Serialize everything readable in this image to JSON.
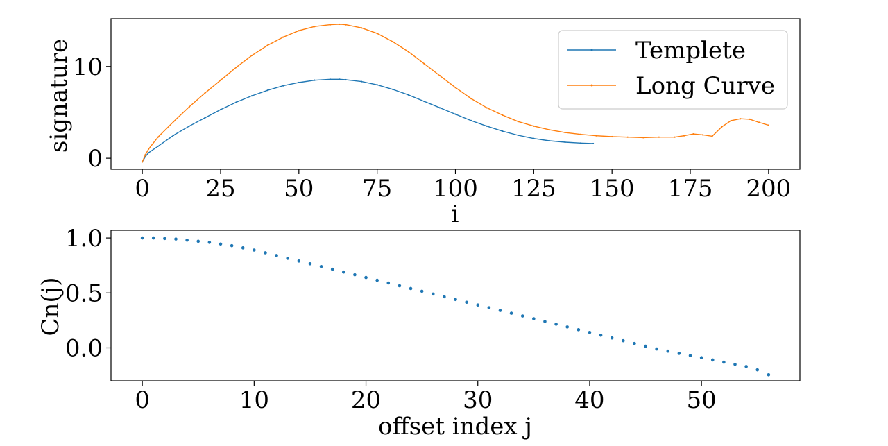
{
  "chart_data": [
    {
      "type": "line",
      "title": "",
      "xlabel": "i",
      "ylabel": "signature",
      "xlim": [
        -10,
        210
      ],
      "ylim": [
        -1.2,
        15.2
      ],
      "xticks": [
        0,
        25,
        50,
        75,
        100,
        125,
        150,
        175,
        200
      ],
      "yticks": [
        0,
        10
      ],
      "legend": {
        "placement": "top-right"
      },
      "series": [
        {
          "name": "Templete",
          "color": "#1f77b4",
          "marker": "dot-small",
          "x": [
            0,
            1,
            2,
            5,
            10,
            15,
            20,
            25,
            30,
            35,
            40,
            45,
            50,
            55,
            60,
            63,
            65,
            70,
            75,
            80,
            85,
            90,
            95,
            100,
            105,
            110,
            115,
            120,
            125,
            130,
            135,
            140,
            144
          ],
          "values": [
            -0.4,
            0.2,
            0.6,
            1.3,
            2.5,
            3.5,
            4.4,
            5.3,
            6.1,
            6.8,
            7.4,
            7.9,
            8.25,
            8.5,
            8.6,
            8.6,
            8.55,
            8.35,
            8.0,
            7.5,
            6.9,
            6.2,
            5.5,
            4.8,
            4.1,
            3.5,
            2.95,
            2.5,
            2.15,
            1.9,
            1.75,
            1.65,
            1.6
          ]
        },
        {
          "name": "Long Curve",
          "color": "#ff7f0e",
          "marker": "dot-small",
          "x": [
            0,
            1,
            2,
            5,
            10,
            15,
            20,
            25,
            30,
            35,
            40,
            45,
            50,
            55,
            60,
            63,
            65,
            70,
            75,
            80,
            85,
            90,
            95,
            100,
            105,
            110,
            115,
            120,
            125,
            130,
            135,
            140,
            145,
            150,
            155,
            160,
            165,
            170,
            173,
            176,
            179,
            182,
            185,
            188,
            191,
            194,
            197,
            200
          ],
          "values": [
            -0.4,
            0.4,
            1.0,
            2.3,
            4.0,
            5.6,
            7.1,
            8.5,
            9.9,
            11.2,
            12.3,
            13.2,
            13.9,
            14.35,
            14.55,
            14.6,
            14.55,
            14.2,
            13.6,
            12.7,
            11.6,
            10.3,
            9.0,
            7.7,
            6.5,
            5.5,
            4.7,
            4.0,
            3.5,
            3.1,
            2.8,
            2.6,
            2.45,
            2.35,
            2.3,
            2.25,
            2.3,
            2.3,
            2.45,
            2.65,
            2.55,
            2.4,
            3.4,
            4.1,
            4.3,
            4.25,
            3.9,
            3.6
          ]
        }
      ]
    },
    {
      "type": "scatter",
      "title": "",
      "xlabel": "offset index j",
      "ylabel": "Cn(j)",
      "xlim": [
        -2.8,
        58.8
      ],
      "ylim": [
        -0.3,
        1.07
      ],
      "xticks": [
        0,
        10,
        20,
        30,
        40,
        50
      ],
      "yticks": [
        0.0,
        0.5,
        1.0
      ],
      "series": [
        {
          "name": "",
          "color": "#1f77b4",
          "x": [
            0,
            1,
            2,
            3,
            4,
            5,
            6,
            7,
            8,
            9,
            10,
            11,
            12,
            13,
            14,
            15,
            16,
            17,
            18,
            19,
            20,
            21,
            22,
            23,
            24,
            25,
            26,
            27,
            28,
            29,
            30,
            31,
            32,
            33,
            34,
            35,
            36,
            37,
            38,
            39,
            40,
            41,
            42,
            43,
            44,
            45,
            46,
            47,
            48,
            49,
            50,
            51,
            52,
            53,
            54,
            55,
            56
          ],
          "values": [
            1.0,
            1.0,
            0.995,
            0.99,
            0.98,
            0.97,
            0.96,
            0.945,
            0.93,
            0.91,
            0.89,
            0.865,
            0.84,
            0.815,
            0.79,
            0.765,
            0.74,
            0.715,
            0.69,
            0.665,
            0.64,
            0.615,
            0.59,
            0.565,
            0.54,
            0.515,
            0.49,
            0.465,
            0.44,
            0.415,
            0.39,
            0.365,
            0.34,
            0.315,
            0.29,
            0.265,
            0.24,
            0.215,
            0.19,
            0.165,
            0.14,
            0.115,
            0.09,
            0.065,
            0.04,
            0.015,
            -0.01,
            -0.03,
            -0.05,
            -0.07,
            -0.09,
            -0.11,
            -0.13,
            -0.15,
            -0.17,
            -0.2,
            -0.245
          ]
        }
      ]
    }
  ]
}
